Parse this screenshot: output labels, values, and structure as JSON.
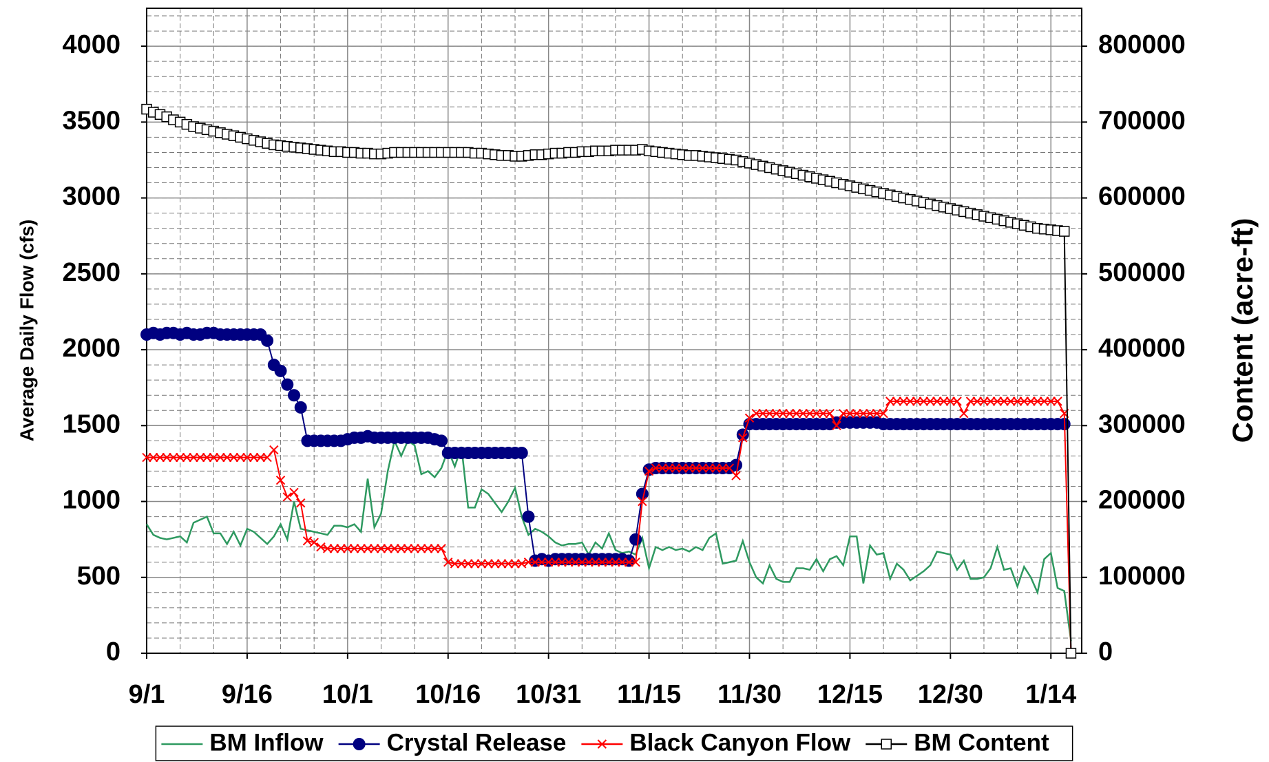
{
  "chart_data": {
    "type": "line",
    "y_label": "Average Daily Flow (cfs)",
    "y2_label": "Content (acre-ft)",
    "categories": [
      "9/1",
      null,
      null,
      null,
      null,
      null,
      null,
      null,
      null,
      null,
      null,
      null,
      null,
      null,
      null,
      "9/16",
      null,
      null,
      null,
      null,
      null,
      null,
      null,
      null,
      null,
      null,
      null,
      null,
      null,
      null,
      "10/1",
      null,
      null,
      null,
      null,
      null,
      null,
      null,
      null,
      null,
      null,
      null,
      null,
      null,
      null,
      "10/16",
      null,
      null,
      null,
      null,
      null,
      null,
      null,
      null,
      null,
      null,
      null,
      null,
      null,
      null,
      "10/31",
      null,
      null,
      null,
      null,
      null,
      null,
      null,
      null,
      null,
      null,
      null,
      null,
      null,
      null,
      "11/15",
      null,
      null,
      null,
      null,
      null,
      null,
      null,
      null,
      null,
      null,
      null,
      null,
      null,
      null,
      "11/30",
      null,
      null,
      null,
      null,
      null,
      null,
      null,
      null,
      null,
      null,
      null,
      null,
      null,
      null,
      "12/15",
      null,
      null,
      null,
      null,
      null,
      null,
      null,
      null,
      null,
      null,
      null,
      null,
      null,
      null,
      "12/30",
      null,
      null,
      null,
      null,
      null,
      null,
      null,
      null,
      null,
      null,
      null,
      null,
      null,
      null,
      "1/14",
      null,
      null,
      null
    ],
    "series": [
      {
        "name": "BM Inflow",
        "color": "#2e9960",
        "marker": "none",
        "values": [
          850,
          780,
          760,
          750,
          760,
          770,
          730,
          860,
          880,
          900,
          790,
          790,
          720,
          800,
          710,
          820,
          800,
          760,
          720,
          770,
          850,
          750,
          1000,
          820,
          810,
          800,
          790,
          780,
          840,
          840,
          830,
          850,
          800,
          1150,
          830,
          920,
          1200,
          1400,
          1300,
          1400,
          1370,
          1180,
          1200,
          1160,
          1220,
          1340,
          1230,
          1360,
          960,
          960,
          1080,
          1050,
          990,
          930,
          1000,
          1090,
          900,
          780,
          820,
          800,
          770,
          730,
          710,
          720,
          720,
          730,
          650,
          730,
          690,
          790,
          680,
          660,
          670,
          650,
          760,
          560,
          700,
          680,
          700,
          680,
          690,
          670,
          700,
          680,
          760,
          790,
          590,
          600,
          610,
          740,
          600,
          500,
          460,
          580,
          490,
          470,
          470,
          560,
          560,
          550,
          620,
          540,
          620,
          640,
          580,
          770,
          770,
          460,
          710,
          650,
          660,
          490,
          590,
          550,
          480,
          510,
          540,
          580,
          670,
          660,
          650,
          550,
          610,
          490,
          490,
          500,
          560,
          700,
          550,
          560,
          440,
          570,
          500,
          400,
          620,
          660,
          430,
          410,
          80
        ]
      },
      {
        "name": "Crystal Release",
        "color": "#000080",
        "marker": "circle",
        "values": [
          2100,
          2110,
          2100,
          2110,
          2110,
          2100,
          2110,
          2100,
          2100,
          2110,
          2110,
          2100,
          2100,
          2100,
          2100,
          2100,
          2100,
          2100,
          2060,
          1900,
          1860,
          1770,
          1700,
          1620,
          1400,
          1400,
          1400,
          1400,
          1400,
          1400,
          1410,
          1420,
          1420,
          1430,
          1420,
          1420,
          1420,
          1420,
          1420,
          1420,
          1420,
          1420,
          1420,
          1410,
          1400,
          1320,
          1320,
          1320,
          1320,
          1320,
          1320,
          1320,
          1320,
          1320,
          1320,
          1320,
          1320,
          900,
          610,
          620,
          610,
          620,
          620,
          620,
          620,
          620,
          620,
          620,
          620,
          620,
          620,
          620,
          610,
          750,
          1050,
          1210,
          1220,
          1220,
          1220,
          1220,
          1220,
          1220,
          1220,
          1220,
          1220,
          1220,
          1220,
          1220,
          1240,
          1440,
          1510,
          1510,
          1510,
          1510,
          1510,
          1510,
          1510,
          1510,
          1510,
          1510,
          1510,
          1510,
          1510,
          1520,
          1520,
          1520,
          1520,
          1520,
          1520,
          1520,
          1510,
          1510,
          1510,
          1510,
          1510,
          1510,
          1510,
          1510,
          1510,
          1510,
          1510,
          1510,
          1510,
          1510,
          1510,
          1510,
          1510,
          1510,
          1510,
          1510,
          1510,
          1510,
          1510,
          1510,
          1510,
          1510,
          1510,
          1510,
          null
        ]
      },
      {
        "name": "Black Canyon Flow",
        "color": "#ff0000",
        "marker": "cross",
        "values": [
          1290,
          1290,
          1290,
          1290,
          1290,
          1290,
          1290,
          1290,
          1290,
          1290,
          1290,
          1290,
          1290,
          1290,
          1290,
          1290,
          1290,
          1290,
          1290,
          1340,
          1140,
          1030,
          1060,
          990,
          740,
          730,
          700,
          690,
          690,
          690,
          690,
          690,
          690,
          690,
          690,
          690,
          690,
          690,
          690,
          690,
          690,
          690,
          690,
          690,
          690,
          600,
          590,
          590,
          590,
          590,
          590,
          590,
          590,
          590,
          590,
          590,
          590,
          600,
          600,
          600,
          600,
          600,
          600,
          600,
          600,
          600,
          600,
          600,
          600,
          600,
          600,
          600,
          600,
          600,
          1000,
          1200,
          1220,
          1220,
          1220,
          1220,
          1220,
          1220,
          1220,
          1220,
          1220,
          1220,
          1220,
          1220,
          1170,
          1420,
          1550,
          1580,
          1580,
          1580,
          1580,
          1580,
          1580,
          1580,
          1580,
          1580,
          1580,
          1580,
          1580,
          1500,
          1580,
          1580,
          1580,
          1580,
          1580,
          1580,
          1580,
          1660,
          1660,
          1660,
          1660,
          1660,
          1660,
          1660,
          1660,
          1660,
          1660,
          1660,
          1580,
          1660,
          1660,
          1660,
          1660,
          1660,
          1660,
          1660,
          1660,
          1660,
          1660,
          1660,
          1660,
          1660,
          1660,
          1580,
          0
        ]
      },
      {
        "name": "BM Content",
        "color": "#000000",
        "marker": "square",
        "axis": "y2",
        "values": [
          717000,
          713000,
          710000,
          707000,
          703000,
          700000,
          697000,
          694000,
          692000,
          690000,
          688000,
          686000,
          684000,
          682000,
          680000,
          678000,
          676000,
          674000,
          672000,
          670000,
          669000,
          668000,
          667000,
          666000,
          665000,
          664000,
          663000,
          662000,
          661000,
          661000,
          660000,
          660000,
          659000,
          659000,
          658000,
          658000,
          659000,
          660000,
          660000,
          660000,
          660000,
          660000,
          660000,
          660000,
          660000,
          660000,
          660000,
          660000,
          660000,
          659000,
          659000,
          658000,
          657000,
          656000,
          656000,
          655000,
          655000,
          656000,
          657000,
          657000,
          658000,
          659000,
          659000,
          660000,
          660000,
          661000,
          661000,
          662000,
          662000,
          662000,
          663000,
          663000,
          663000,
          663000,
          664000,
          662000,
          661000,
          660000,
          659000,
          658000,
          657000,
          656000,
          656000,
          655000,
          654000,
          653000,
          652000,
          651000,
          650000,
          648000,
          646000,
          644000,
          642000,
          640000,
          638000,
          636000,
          634000,
          632000,
          630000,
          628000,
          626000,
          624000,
          622000,
          620000,
          618000,
          616000,
          614000,
          612000,
          610000,
          608000,
          606000,
          604000,
          602000,
          600000,
          598000,
          596000,
          594000,
          592000,
          590000,
          588000,
          586000,
          584000,
          582000,
          580000,
          578000,
          576000,
          574000,
          572000,
          570000,
          568000,
          566000,
          564000,
          562000,
          560000,
          559000,
          558000,
          557000,
          556000,
          0
        ]
      }
    ],
    "ylim": [
      0,
      4250
    ],
    "yticks": [
      0,
      500,
      1000,
      1500,
      2000,
      2500,
      3000,
      3500,
      4000
    ],
    "y2lim": [
      0,
      850000
    ],
    "y2ticks": [
      0,
      100000,
      200000,
      300000,
      400000,
      500000,
      600000,
      700000,
      800000
    ],
    "grid": true,
    "legend": "bottom"
  }
}
